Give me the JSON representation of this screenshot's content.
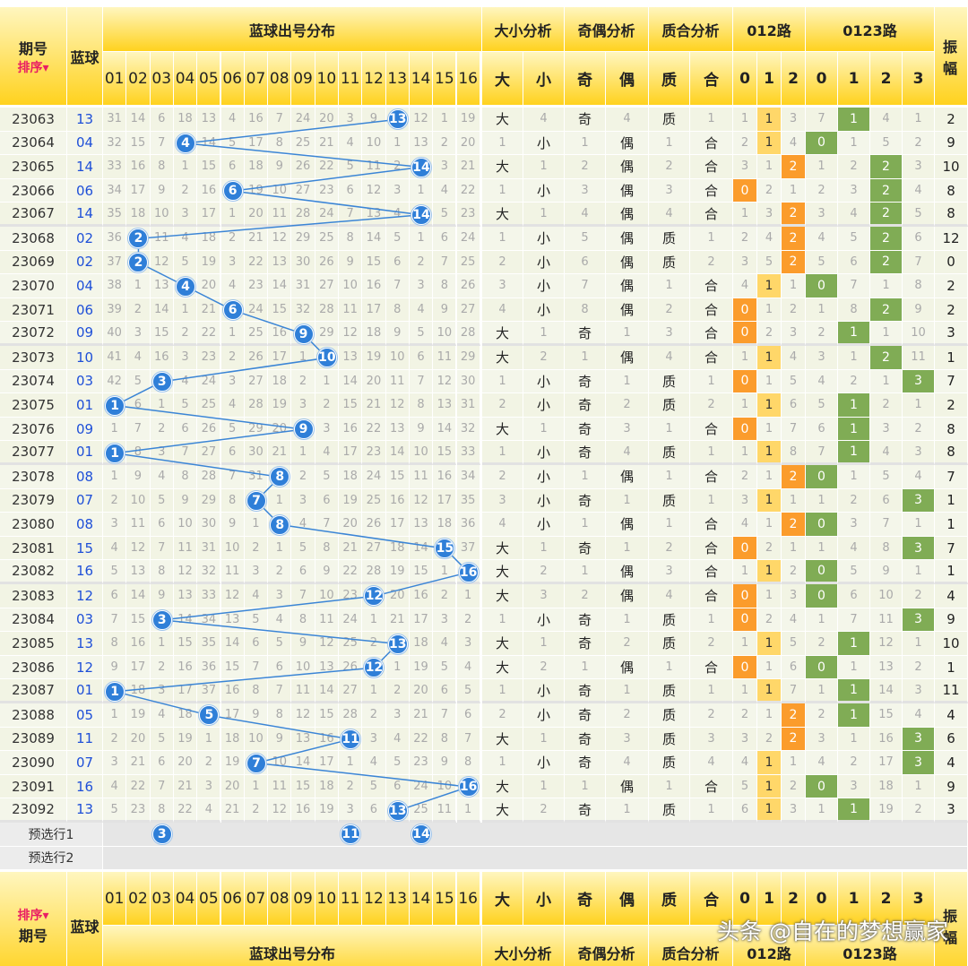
{
  "header": {
    "issue": "期号",
    "sort": "排序",
    "blue": "蓝球",
    "dist": "蓝球出号分布",
    "size": "大小分析",
    "parity": "奇偶分析",
    "prime": "质合分析",
    "r012": "012路",
    "r0123": "0123路",
    "amp": "振幅",
    "nums": [
      "01",
      "02",
      "03",
      "04",
      "05",
      "06",
      "07",
      "08",
      "09",
      "10",
      "11",
      "12",
      "13",
      "14",
      "15",
      "16"
    ],
    "size_cols": [
      "大",
      "小"
    ],
    "parity_cols": [
      "奇",
      "偶"
    ],
    "prime_cols": [
      "质",
      "合"
    ],
    "r012_cols": [
      "0",
      "1",
      "2"
    ],
    "r0123_cols": [
      "0",
      "1",
      "2",
      "3"
    ]
  },
  "rows": [
    {
      "issue": "23063",
      "blue": "13",
      "miss": [
        31,
        14,
        6,
        18,
        13,
        4,
        16,
        7,
        24,
        20,
        3,
        9,
        0,
        12,
        1,
        19
      ],
      "size": [
        "大",
        4
      ],
      "parity": [
        "奇",
        4
      ],
      "prime": [
        "质",
        1
      ],
      "r012": [
        1,
        0,
        3
      ],
      "r0123": [
        7,
        0,
        4,
        1
      ],
      "amp": 2
    },
    {
      "issue": "23064",
      "blue": "04",
      "miss": [
        32,
        15,
        7,
        0,
        14,
        5,
        17,
        8,
        25,
        21,
        4,
        10,
        1,
        13,
        2,
        20
      ],
      "size": [
        1,
        "小"
      ],
      "parity": [
        1,
        "偶"
      ],
      "prime": [
        1,
        "合"
      ],
      "r012": [
        2,
        0,
        4
      ],
      "r0123": [
        0,
        1,
        5,
        2
      ],
      "amp": 9
    },
    {
      "issue": "23065",
      "blue": "14",
      "miss": [
        33,
        16,
        8,
        1,
        15,
        6,
        18,
        9,
        26,
        22,
        5,
        11,
        2,
        0,
        3,
        21
      ],
      "size": [
        "大",
        1
      ],
      "parity": [
        2,
        "偶"
      ],
      "prime": [
        2,
        "合"
      ],
      "r012": [
        3,
        1,
        0
      ],
      "r0123": [
        1,
        2,
        0,
        3
      ],
      "amp": 10
    },
    {
      "issue": "23066",
      "blue": "06",
      "miss": [
        34,
        17,
        9,
        2,
        16,
        0,
        19,
        10,
        27,
        23,
        6,
        12,
        3,
        1,
        4,
        22
      ],
      "size": [
        1,
        "小"
      ],
      "parity": [
        3,
        "偶"
      ],
      "prime": [
        3,
        "合"
      ],
      "r012": [
        0,
        2,
        1
      ],
      "r0123": [
        2,
        3,
        0,
        4
      ],
      "amp": 8
    },
    {
      "issue": "23067",
      "blue": "14",
      "miss": [
        35,
        18,
        10,
        3,
        17,
        1,
        20,
        11,
        28,
        24,
        7,
        13,
        4,
        0,
        5,
        23
      ],
      "size": [
        "大",
        1
      ],
      "parity": [
        4,
        "偶"
      ],
      "prime": [
        4,
        "合"
      ],
      "r012": [
        1,
        3,
        0
      ],
      "r0123": [
        3,
        4,
        0,
        5
      ],
      "amp": 8
    },
    {
      "issue": "23068",
      "blue": "02",
      "miss": [
        36,
        0,
        11,
        4,
        18,
        2,
        21,
        12,
        29,
        25,
        8,
        14,
        5,
        1,
        6,
        24
      ],
      "size": [
        1,
        "小"
      ],
      "parity": [
        5,
        "偶"
      ],
      "prime": [
        "质",
        1
      ],
      "r012": [
        2,
        4,
        0
      ],
      "r0123": [
        4,
        5,
        0,
        6
      ],
      "amp": 12
    },
    {
      "issue": "23069",
      "blue": "02",
      "miss": [
        37,
        0,
        12,
        5,
        19,
        3,
        22,
        13,
        30,
        26,
        9,
        15,
        6,
        2,
        7,
        25
      ],
      "size": [
        2,
        "小"
      ],
      "parity": [
        6,
        "偶"
      ],
      "prime": [
        "质",
        2
      ],
      "r012": [
        3,
        5,
        0
      ],
      "r0123": [
        5,
        6,
        0,
        7
      ],
      "amp": 0
    },
    {
      "issue": "23070",
      "blue": "04",
      "miss": [
        38,
        1,
        13,
        0,
        20,
        4,
        23,
        14,
        31,
        27,
        10,
        16,
        7,
        3,
        8,
        26
      ],
      "size": [
        3,
        "小"
      ],
      "parity": [
        7,
        "偶"
      ],
      "prime": [
        1,
        "合"
      ],
      "r012": [
        4,
        0,
        1
      ],
      "r0123": [
        0,
        7,
        1,
        8
      ],
      "amp": 2
    },
    {
      "issue": "23071",
      "blue": "06",
      "miss": [
        39,
        2,
        14,
        1,
        21,
        0,
        24,
        15,
        32,
        28,
        11,
        17,
        8,
        4,
        9,
        27
      ],
      "size": [
        4,
        "小"
      ],
      "parity": [
        8,
        "偶"
      ],
      "prime": [
        2,
        "合"
      ],
      "r012": [
        0,
        1,
        2
      ],
      "r0123": [
        1,
        8,
        0,
        9
      ],
      "amp": 2
    },
    {
      "issue": "23072",
      "blue": "09",
      "miss": [
        40,
        3,
        15,
        2,
        22,
        1,
        25,
        16,
        0,
        29,
        12,
        18,
        9,
        5,
        10,
        28
      ],
      "size": [
        "大",
        1
      ],
      "parity": [
        "奇",
        1
      ],
      "prime": [
        3,
        "合"
      ],
      "r012": [
        0,
        2,
        3
      ],
      "r0123": [
        2,
        0,
        1,
        10
      ],
      "amp": 3
    },
    {
      "issue": "23073",
      "blue": "10",
      "miss": [
        41,
        4,
        16,
        3,
        23,
        2,
        26,
        17,
        1,
        0,
        13,
        19,
        10,
        6,
        11,
        29
      ],
      "size": [
        "大",
        2
      ],
      "parity": [
        1,
        "偶"
      ],
      "prime": [
        4,
        "合"
      ],
      "r012": [
        1,
        0,
        4
      ],
      "r0123": [
        3,
        1,
        0,
        11
      ],
      "amp": 1
    },
    {
      "issue": "23074",
      "blue": "03",
      "miss": [
        42,
        5,
        0,
        4,
        24,
        3,
        27,
        18,
        2,
        1,
        14,
        20,
        11,
        7,
        12,
        30
      ],
      "size": [
        1,
        "小"
      ],
      "parity": [
        "奇",
        1
      ],
      "prime": [
        "质",
        1
      ],
      "r012": [
        0,
        1,
        5
      ],
      "r0123": [
        4,
        2,
        1,
        0
      ],
      "amp": 7
    },
    {
      "issue": "23075",
      "blue": "01",
      "miss": [
        0,
        6,
        1,
        5,
        25,
        4,
        28,
        19,
        3,
        2,
        15,
        21,
        12,
        8,
        13,
        31
      ],
      "size": [
        2,
        "小"
      ],
      "parity": [
        "奇",
        2
      ],
      "prime": [
        "质",
        2
      ],
      "r012": [
        1,
        0,
        6
      ],
      "r0123": [
        5,
        0,
        2,
        1
      ],
      "amp": 2
    },
    {
      "issue": "23076",
      "blue": "09",
      "miss": [
        1,
        7,
        2,
        6,
        26,
        5,
        29,
        20,
        0,
        3,
        16,
        22,
        13,
        9,
        14,
        32
      ],
      "size": [
        "大",
        1
      ],
      "parity": [
        "奇",
        3
      ],
      "prime": [
        1,
        "合"
      ],
      "r012": [
        0,
        1,
        7
      ],
      "r0123": [
        6,
        0,
        3,
        2
      ],
      "amp": 8
    },
    {
      "issue": "23077",
      "blue": "01",
      "miss": [
        0,
        8,
        3,
        7,
        27,
        6,
        30,
        21,
        1,
        4,
        17,
        23,
        14,
        10,
        15,
        33
      ],
      "size": [
        1,
        "小"
      ],
      "parity": [
        "奇",
        4
      ],
      "prime": [
        "质",
        1
      ],
      "r012": [
        1,
        0,
        8
      ],
      "r0123": [
        7,
        0,
        4,
        3
      ],
      "amp": 8
    },
    {
      "issue": "23078",
      "blue": "08",
      "miss": [
        1,
        9,
        4,
        8,
        28,
        7,
        31,
        0,
        2,
        5,
        18,
        24,
        15,
        11,
        16,
        34
      ],
      "size": [
        2,
        "小"
      ],
      "parity": [
        1,
        "偶"
      ],
      "prime": [
        1,
        "合"
      ],
      "r012": [
        2,
        1,
        0
      ],
      "r0123": [
        0,
        1,
        5,
        4
      ],
      "amp": 7
    },
    {
      "issue": "23079",
      "blue": "07",
      "miss": [
        2,
        10,
        5,
        9,
        29,
        8,
        0,
        1,
        3,
        6,
        19,
        25,
        16,
        12,
        17,
        35
      ],
      "size": [
        3,
        "小"
      ],
      "parity": [
        "奇",
        1
      ],
      "prime": [
        "质",
        1
      ],
      "r012": [
        3,
        0,
        1
      ],
      "r0123": [
        1,
        2,
        6,
        0
      ],
      "amp": 1
    },
    {
      "issue": "23080",
      "blue": "08",
      "miss": [
        3,
        11,
        6,
        10,
        30,
        9,
        1,
        0,
        4,
        7,
        20,
        26,
        17,
        13,
        18,
        36
      ],
      "size": [
        4,
        "小"
      ],
      "parity": [
        1,
        "偶"
      ],
      "prime": [
        1,
        "合"
      ],
      "r012": [
        4,
        1,
        0
      ],
      "r0123": [
        0,
        3,
        7,
        1
      ],
      "amp": 1
    },
    {
      "issue": "23081",
      "blue": "15",
      "miss": [
        4,
        12,
        7,
        11,
        31,
        10,
        2,
        1,
        5,
        8,
        21,
        27,
        18,
        14,
        0,
        37
      ],
      "size": [
        "大",
        1
      ],
      "parity": [
        "奇",
        1
      ],
      "prime": [
        2,
        "合"
      ],
      "r012": [
        0,
        2,
        1
      ],
      "r0123": [
        1,
        4,
        8,
        0
      ],
      "amp": 7
    },
    {
      "issue": "23082",
      "blue": "16",
      "miss": [
        5,
        13,
        8,
        12,
        32,
        11,
        3,
        2,
        6,
        9,
        22,
        28,
        19,
        15,
        1,
        0
      ],
      "size": [
        "大",
        2
      ],
      "parity": [
        1,
        "偶"
      ],
      "prime": [
        3,
        "合"
      ],
      "r012": [
        1,
        0,
        2
      ],
      "r0123": [
        0,
        5,
        9,
        1
      ],
      "amp": 1
    },
    {
      "issue": "23083",
      "blue": "12",
      "miss": [
        6,
        14,
        9,
        13,
        33,
        12,
        4,
        3,
        7,
        10,
        23,
        0,
        20,
        16,
        2,
        1
      ],
      "size": [
        "大",
        3
      ],
      "parity": [
        2,
        "偶"
      ],
      "prime": [
        4,
        "合"
      ],
      "r012": [
        0,
        1,
        3
      ],
      "r0123": [
        0,
        6,
        10,
        2
      ],
      "amp": 4
    },
    {
      "issue": "23084",
      "blue": "03",
      "miss": [
        7,
        15,
        0,
        14,
        34,
        13,
        5,
        4,
        8,
        11,
        24,
        1,
        21,
        17,
        3,
        2
      ],
      "size": [
        1,
        "小"
      ],
      "parity": [
        "奇",
        1
      ],
      "prime": [
        "质",
        1
      ],
      "r012": [
        0,
        2,
        4
      ],
      "r0123": [
        1,
        7,
        11,
        0
      ],
      "amp": 9
    },
    {
      "issue": "23085",
      "blue": "13",
      "miss": [
        8,
        16,
        1,
        15,
        35,
        14,
        6,
        5,
        9,
        12,
        25,
        2,
        0,
        18,
        4,
        3
      ],
      "size": [
        "大",
        1
      ],
      "parity": [
        "奇",
        2
      ],
      "prime": [
        "质",
        2
      ],
      "r012": [
        1,
        0,
        5
      ],
      "r0123": [
        2,
        0,
        12,
        1
      ],
      "amp": 10
    },
    {
      "issue": "23086",
      "blue": "12",
      "miss": [
        9,
        17,
        2,
        16,
        36,
        15,
        7,
        6,
        10,
        13,
        26,
        0,
        1,
        19,
        5,
        4
      ],
      "size": [
        "大",
        2
      ],
      "parity": [
        1,
        "偶"
      ],
      "prime": [
        1,
        "合"
      ],
      "r012": [
        0,
        1,
        6
      ],
      "r0123": [
        0,
        1,
        13,
        2
      ],
      "amp": 1
    },
    {
      "issue": "23087",
      "blue": "01",
      "miss": [
        0,
        18,
        3,
        17,
        37,
        16,
        8,
        7,
        11,
        14,
        27,
        1,
        2,
        20,
        6,
        5
      ],
      "size": [
        1,
        "小"
      ],
      "parity": [
        "奇",
        1
      ],
      "prime": [
        "质",
        1
      ],
      "r012": [
        1,
        0,
        7
      ],
      "r0123": [
        1,
        0,
        14,
        3
      ],
      "amp": 11
    },
    {
      "issue": "23088",
      "blue": "05",
      "miss": [
        1,
        19,
        4,
        18,
        0,
        17,
        9,
        8,
        12,
        15,
        28,
        2,
        3,
        21,
        7,
        6
      ],
      "size": [
        2,
        "小"
      ],
      "parity": [
        "奇",
        2
      ],
      "prime": [
        "质",
        2
      ],
      "r012": [
        2,
        1,
        0
      ],
      "r0123": [
        2,
        0,
        15,
        4
      ],
      "amp": 4
    },
    {
      "issue": "23089",
      "blue": "11",
      "miss": [
        2,
        20,
        5,
        19,
        1,
        18,
        10,
        9,
        13,
        16,
        0,
        3,
        4,
        22,
        8,
        7
      ],
      "size": [
        "大",
        1
      ],
      "parity": [
        "奇",
        3
      ],
      "prime": [
        "质",
        3
      ],
      "r012": [
        3,
        2,
        0
      ],
      "r0123": [
        3,
        1,
        16,
        0
      ],
      "amp": 6
    },
    {
      "issue": "23090",
      "blue": "07",
      "miss": [
        3,
        21,
        6,
        20,
        2,
        19,
        0,
        10,
        14,
        17,
        1,
        4,
        5,
        23,
        9,
        8
      ],
      "size": [
        1,
        "小"
      ],
      "parity": [
        "奇",
        4
      ],
      "prime": [
        "质",
        4
      ],
      "r012": [
        4,
        0,
        1
      ],
      "r0123": [
        4,
        2,
        17,
        0
      ],
      "amp": 4
    },
    {
      "issue": "23091",
      "blue": "16",
      "miss": [
        4,
        22,
        7,
        21,
        3,
        20,
        1,
        11,
        15,
        18,
        2,
        5,
        6,
        24,
        10,
        0
      ],
      "size": [
        "大",
        1
      ],
      "parity": [
        1,
        "偶"
      ],
      "prime": [
        1,
        "合"
      ],
      "r012": [
        5,
        0,
        2
      ],
      "r0123": [
        0,
        3,
        18,
        1
      ],
      "amp": 9
    },
    {
      "issue": "23092",
      "blue": "13",
      "miss": [
        5,
        23,
        8,
        22,
        4,
        21,
        2,
        12,
        16,
        19,
        3,
        6,
        0,
        25,
        11,
        1
      ],
      "size": [
        "大",
        2
      ],
      "parity": [
        "奇",
        1
      ],
      "prime": [
        "质",
        1
      ],
      "r012": [
        6,
        0,
        3
      ],
      "r0123": [
        1,
        0,
        19,
        2
      ],
      "amp": 3
    }
  ],
  "preselect": [
    {
      "label": "预选行1",
      "balls": [
        "3",
        "11",
        "14"
      ]
    },
    {
      "label": "预选行2",
      "balls": []
    }
  ],
  "watermark": "头条 @自在的梦想赢家",
  "colors": {
    "ball": "#2f7fd8",
    "orange": "#fb9c2c",
    "yellow": "#ffd769",
    "green": "#80ac55",
    "header": "#ffd21e"
  }
}
